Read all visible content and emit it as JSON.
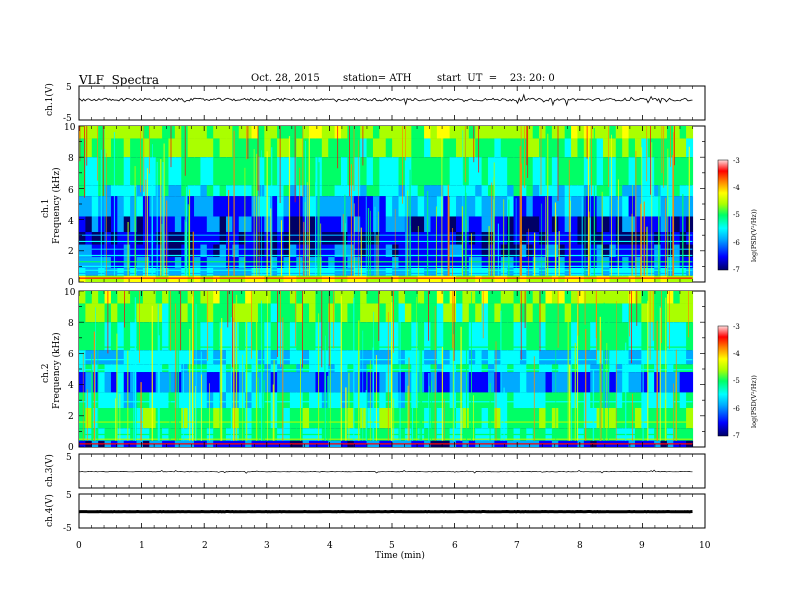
{
  "header": {
    "title": "VLF  Spectra",
    "date": "Oct. 28, 2015",
    "station": "station= ATH",
    "start": "start  UT  =    23: 20: 0"
  },
  "chart_data": [
    {
      "panel": "ch1-waveform",
      "type": "line",
      "ylabel": "ch.1(V)",
      "ylim": [
        -5,
        5
      ],
      "yticks": [
        "5",
        "-5"
      ],
      "xlim": [
        0,
        10
      ],
      "data_extent_min": 9.8,
      "series_summary": "noise waveform centred near +1 V with spikes up to ~±1.5 V"
    },
    {
      "panel": "ch1-spectrogram",
      "type": "heatmap",
      "ylabel": "ch.1\nFrequency  (kHz)",
      "ylim": [
        0,
        10
      ],
      "yticks": [
        "0",
        "2",
        "4",
        "6",
        "8",
        "10"
      ],
      "xlim": [
        0,
        10
      ],
      "colorbar": {
        "label": "log(PSD(V²/Hz))",
        "range": [
          -7,
          -3
        ],
        "ticks": [
          "-3",
          "-4",
          "-5",
          "-6",
          "-7"
        ]
      }
    },
    {
      "panel": "ch2-spectrogram",
      "type": "heatmap",
      "ylabel": "ch.2\nFrequency  (kHz)",
      "ylim": [
        0,
        10
      ],
      "yticks": [
        "0",
        "2",
        "4",
        "6",
        "8",
        "10"
      ],
      "xlim": [
        0,
        10
      ],
      "colorbar": {
        "label": "log(PSD(V²/Hz))",
        "range": [
          -7,
          -3
        ],
        "ticks": [
          "-3",
          "-4",
          "-5",
          "-6",
          "-7"
        ]
      }
    },
    {
      "panel": "ch3-waveform",
      "type": "line",
      "ylabel": "ch.3(V)",
      "ylim": [
        -5,
        5
      ],
      "yticks": [
        "5"
      ],
      "xlim": [
        0,
        10
      ],
      "series_summary": "flat trace near 0 V with a few tiny blips"
    },
    {
      "panel": "ch4-waveform",
      "type": "line",
      "ylabel": "ch.4(V)",
      "ylim": [
        -5,
        5
      ],
      "yticks": [
        "5",
        "-5"
      ],
      "xlim": [
        0,
        10
      ],
      "series_summary": "thick flat trace near 0 V"
    }
  ],
  "x_axis": {
    "label": "Time  (min)",
    "ticks": [
      "0",
      "1",
      "2",
      "3",
      "4",
      "5",
      "6",
      "7",
      "8",
      "9",
      "10"
    ],
    "range": [
      0,
      10
    ]
  },
  "colors": {
    "colormap": [
      "#000066",
      "#0000ff",
      "#00aaff",
      "#00ffff",
      "#00ff66",
      "#aaff00",
      "#ffff00",
      "#ff8800",
      "#ff0000",
      "#ffdddd"
    ],
    "trace": "#000000"
  }
}
